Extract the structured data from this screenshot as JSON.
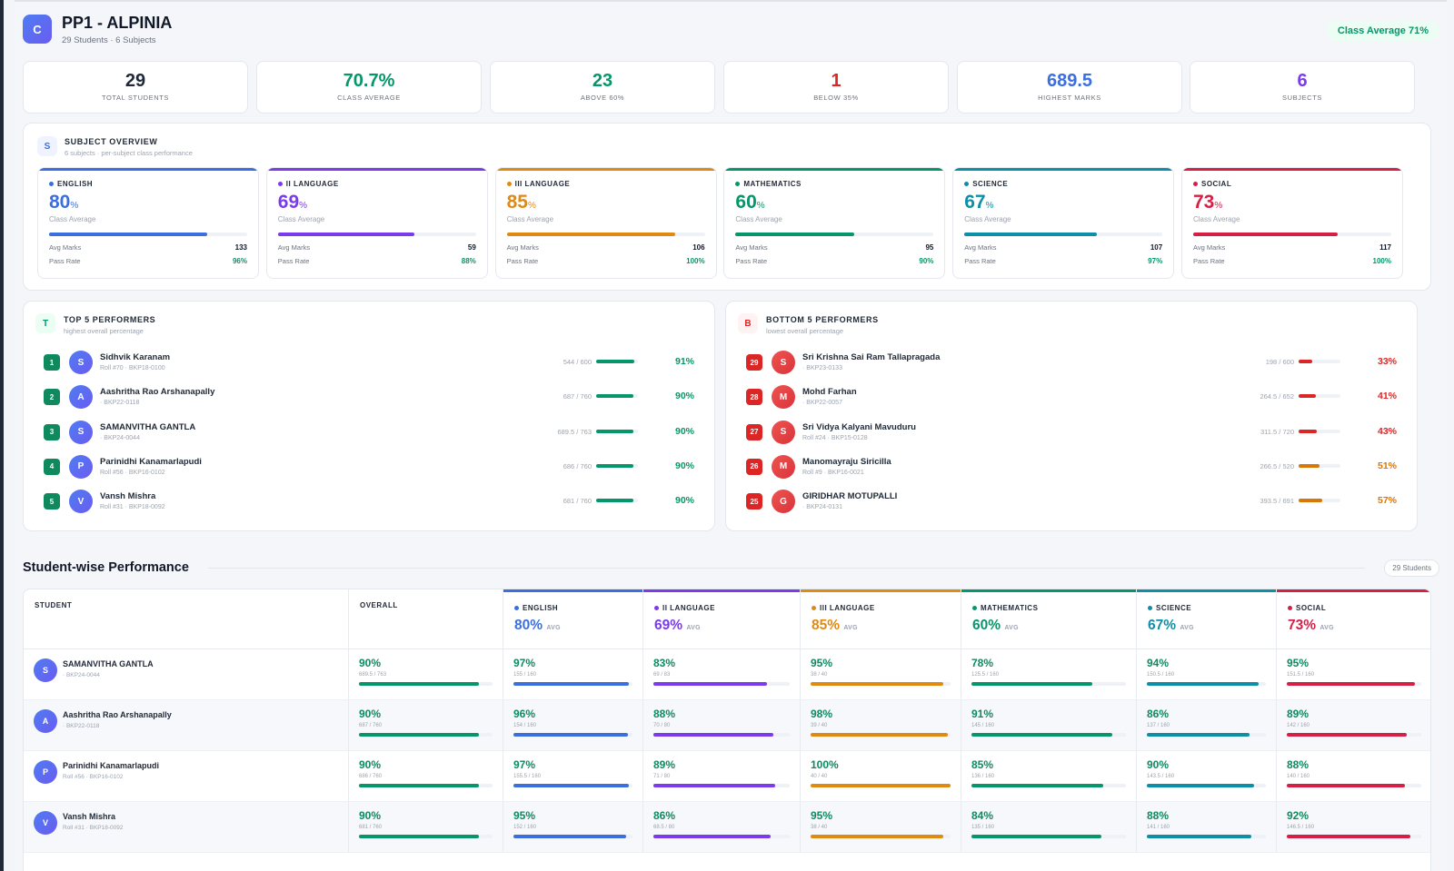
{
  "header": {
    "logo_letter": "C",
    "title": "PP1 - ALPINIA",
    "subtitle": "29 Students · 6 Subjects",
    "class_avg_pill": "Class Average 71%"
  },
  "stats": [
    {
      "value": "29",
      "label": "TOTAL STUDENTS",
      "color": "#1f2937"
    },
    {
      "value": "70.7%",
      "label": "CLASS AVERAGE",
      "color": "#059669"
    },
    {
      "value": "23",
      "label": "ABOVE 60%",
      "color": "#059669"
    },
    {
      "value": "1",
      "label": "BELOW 35%",
      "color": "#dc2626"
    },
    {
      "value": "689.5",
      "label": "HIGHEST MARKS",
      "color": "#3b6fe0"
    },
    {
      "value": "6",
      "label": "SUBJECTS",
      "color": "#7c3aed"
    }
  ],
  "subject_overview": {
    "icon": "S",
    "title": "SUBJECT OVERVIEW",
    "subtitle": "6 subjects · per-subject class performance",
    "class_avg_label": "Class Average",
    "avg_marks_label": "Avg Marks",
    "pass_rate_label": "Pass Rate",
    "pct_sign": "%",
    "subjects": [
      {
        "name": "ENGLISH",
        "avg": "80",
        "avg_marks": "133",
        "pass_rate": "96%",
        "color": "#3b6fe0",
        "fill": 0.8
      },
      {
        "name": "II LANGUAGE",
        "avg": "69",
        "avg_marks": "59",
        "pass_rate": "88%",
        "color": "#7c3aed",
        "fill": 0.69
      },
      {
        "name": "III LANGUAGE",
        "avg": "85",
        "avg_marks": "106",
        "pass_rate": "100%",
        "color": "#e08a12",
        "fill": 0.85
      },
      {
        "name": "MATHEMATICS",
        "avg": "60",
        "avg_marks": "95",
        "pass_rate": "90%",
        "color": "#059669",
        "fill": 0.6
      },
      {
        "name": "SCIENCE",
        "avg": "67",
        "avg_marks": "107",
        "pass_rate": "97%",
        "color": "#0e8fa8",
        "fill": 0.67
      },
      {
        "name": "SOCIAL",
        "avg": "73",
        "avg_marks": "117",
        "pass_rate": "100%",
        "color": "#d61f45",
        "fill": 0.73
      }
    ]
  },
  "top_performers": {
    "icon": "T",
    "title": "TOP 5 PERFORMERS",
    "subtitle": "highest overall percentage",
    "rows": [
      {
        "rank": "1",
        "initial": "S",
        "name": "Sidhvik Karanam",
        "roll": "Roll #70 · BKP18-0100",
        "marks": "544 / 600",
        "pct": "91%",
        "fill": 0.91
      },
      {
        "rank": "2",
        "initial": "A",
        "name": "Aashritha Rao Arshanapally",
        "roll": "· BKP22-0118",
        "marks": "687 / 760",
        "pct": "90%",
        "fill": 0.9
      },
      {
        "rank": "3",
        "initial": "S",
        "name": "SAMANVITHA GANTLA",
        "roll": "· BKP24-0044",
        "marks": "689.5 / 763",
        "pct": "90%",
        "fill": 0.9
      },
      {
        "rank": "4",
        "initial": "P",
        "name": "Parinidhi Kanamarlapudi",
        "roll": "Roll #56 · BKP16-0102",
        "marks": "686 / 760",
        "pct": "90%",
        "fill": 0.9
      },
      {
        "rank": "5",
        "initial": "V",
        "name": "Vansh Mishra",
        "roll": "Roll #31 · BKP18-0092",
        "marks": "681 / 760",
        "pct": "90%",
        "fill": 0.9
      }
    ]
  },
  "bottom_performers": {
    "icon": "B",
    "title": "BOTTOM 5 PERFORMERS",
    "subtitle": "lowest overall percentage",
    "rows": [
      {
        "rank": "29",
        "initial": "S",
        "name": "Sri Krishna Sai Ram Tallapragada",
        "roll": "· BKP23-0133",
        "marks": "198 / 600",
        "pct": "33%",
        "fill": 0.33,
        "color": "#dc2626"
      },
      {
        "rank": "28",
        "initial": "M",
        "name": "Mohd Farhan",
        "roll": "· BKP22-0057",
        "marks": "264.5 / 652",
        "pct": "41%",
        "fill": 0.41,
        "color": "#dc2626"
      },
      {
        "rank": "27",
        "initial": "S",
        "name": "Sri Vidya Kalyani Mavuduru",
        "roll": "Roll #24 · BKP15-0128",
        "marks": "311.5 / 720",
        "pct": "43%",
        "fill": 0.43,
        "color": "#dc2626"
      },
      {
        "rank": "26",
        "initial": "M",
        "name": "Manomayraju Siricilla",
        "roll": "Roll #9 · BKP16-0021",
        "marks": "266.5 / 520",
        "pct": "51%",
        "fill": 0.51,
        "color": "#d97706"
      },
      {
        "rank": "25",
        "initial": "G",
        "name": "GIRIDHAR MOTUPALLI",
        "roll": "· BKP24-0131",
        "marks": "393.5 / 691",
        "pct": "57%",
        "fill": 0.57,
        "color": "#d97706"
      }
    ]
  },
  "student_wise": {
    "title": "Student-wise Performance",
    "count_pill": "29 Students",
    "col_student": "STUDENT",
    "col_overall": "OVERALL",
    "avg_suffix": "AVG",
    "subject_headers": [
      {
        "name": "ENGLISH",
        "avg": "80%",
        "color": "#3b6fe0"
      },
      {
        "name": "II LANGUAGE",
        "avg": "69%",
        "color": "#7c3aed"
      },
      {
        "name": "III LANGUAGE",
        "avg": "85%",
        "color": "#e08a12"
      },
      {
        "name": "MATHEMATICS",
        "avg": "60%",
        "color": "#059669"
      },
      {
        "name": "SCIENCE",
        "avg": "67%",
        "color": "#0e8fa8"
      },
      {
        "name": "SOCIAL",
        "avg": "73%",
        "color": "#d61f45"
      }
    ],
    "rows": [
      {
        "initial": "S",
        "name": "SAMANVITHA GANTLA",
        "roll": "· BKP24-0044",
        "overall": {
          "pct": "90%",
          "marks": "689.5 / 763",
          "fill": 0.9
        },
        "subjects": [
          {
            "pct": "97%",
            "marks": "155 / 160",
            "fill": 0.97
          },
          {
            "pct": "83%",
            "marks": "69 / 83",
            "fill": 0.83
          },
          {
            "pct": "95%",
            "marks": "38 / 40",
            "fill": 0.95
          },
          {
            "pct": "78%",
            "marks": "125.5 / 160",
            "fill": 0.78
          },
          {
            "pct": "94%",
            "marks": "150.5 / 160",
            "fill": 0.94
          },
          {
            "pct": "95%",
            "marks": "151.5 / 160",
            "fill": 0.95
          }
        ]
      },
      {
        "initial": "A",
        "name": "Aashritha Rao Arshanapally",
        "roll": "· BKP22-0118",
        "overall": {
          "pct": "90%",
          "marks": "687 / 760",
          "fill": 0.9
        },
        "subjects": [
          {
            "pct": "96%",
            "marks": "154 / 160",
            "fill": 0.96
          },
          {
            "pct": "88%",
            "marks": "70 / 80",
            "fill": 0.88
          },
          {
            "pct": "98%",
            "marks": "39 / 40",
            "fill": 0.98
          },
          {
            "pct": "91%",
            "marks": "145 / 160",
            "fill": 0.91
          },
          {
            "pct": "86%",
            "marks": "137 / 160",
            "fill": 0.86
          },
          {
            "pct": "89%",
            "marks": "142 / 160",
            "fill": 0.89
          }
        ]
      },
      {
        "initial": "P",
        "name": "Parinidhi Kanamarlapudi",
        "roll": "Roll #56 · BKP16-0102",
        "overall": {
          "pct": "90%",
          "marks": "686 / 760",
          "fill": 0.9
        },
        "subjects": [
          {
            "pct": "97%",
            "marks": "155.5 / 160",
            "fill": 0.97
          },
          {
            "pct": "89%",
            "marks": "71 / 80",
            "fill": 0.89
          },
          {
            "pct": "100%",
            "marks": "40 / 40",
            "fill": 1.0
          },
          {
            "pct": "85%",
            "marks": "136 / 160",
            "fill": 0.85
          },
          {
            "pct": "90%",
            "marks": "143.5 / 160",
            "fill": 0.9
          },
          {
            "pct": "88%",
            "marks": "140 / 160",
            "fill": 0.88
          }
        ]
      },
      {
        "initial": "V",
        "name": "Vansh Mishra",
        "roll": "Roll #31 · BKP18-0092",
        "overall": {
          "pct": "90%",
          "marks": "681 / 760",
          "fill": 0.9
        },
        "subjects": [
          {
            "pct": "95%",
            "marks": "152 / 160",
            "fill": 0.95
          },
          {
            "pct": "86%",
            "marks": "68.5 / 80",
            "fill": 0.86
          },
          {
            "pct": "95%",
            "marks": "38 / 40",
            "fill": 0.95
          },
          {
            "pct": "84%",
            "marks": "135 / 160",
            "fill": 0.84
          },
          {
            "pct": "88%",
            "marks": "141 / 160",
            "fill": 0.88
          },
          {
            "pct": "92%",
            "marks": "146.5 / 160",
            "fill": 0.92
          }
        ]
      }
    ]
  }
}
